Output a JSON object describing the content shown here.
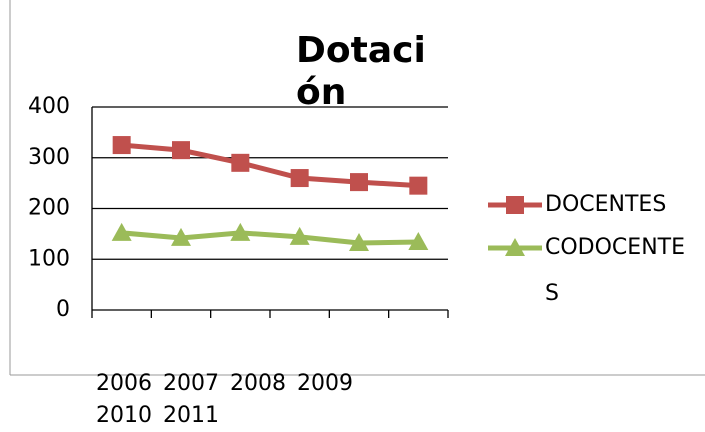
{
  "chart_data": {
    "type": "line",
    "title": "Dotación",
    "categories": [
      "2006",
      "2007",
      "2008",
      "2009",
      "2010",
      "2011"
    ],
    "series": [
      {
        "name": "DOCENTES",
        "color": "#c0504d",
        "marker": "square",
        "values": [
          325,
          315,
          290,
          260,
          252,
          245
        ]
      },
      {
        "name": "CODOCENTES",
        "color": "#9bbb59",
        "marker": "triangle",
        "values": [
          152,
          142,
          152,
          144,
          132,
          134
        ]
      }
    ],
    "ylim": [
      0,
      400
    ],
    "yticks": [
      0,
      100,
      200,
      300,
      400
    ],
    "grid": true,
    "legend": "right"
  }
}
